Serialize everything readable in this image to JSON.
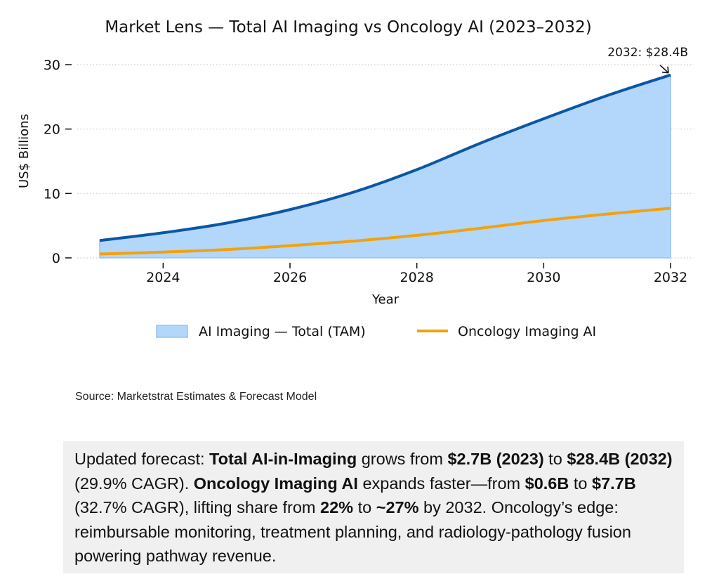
{
  "chart_data": {
    "type": "area",
    "title": "Market Lens — Total AI Imaging vs Oncology AI (2023–2032)",
    "xlabel": "Year",
    "ylabel": "US$ Billions",
    "x": [
      2023,
      2024,
      2025,
      2026,
      2027,
      2028,
      2029,
      2030,
      2031,
      2032
    ],
    "xlim": [
      2022.65,
      2032.35
    ],
    "ylim": [
      0,
      31
    ],
    "xticks": [
      2024,
      2026,
      2028,
      2030,
      2032
    ],
    "yticks": [
      0,
      10,
      20,
      30
    ],
    "grid": "horizontal-dotted",
    "legend_position": "bottom-center",
    "series": [
      {
        "name": "AI Imaging — Total (TAM)",
        "kind": "area-with-line",
        "color": "#0b57a4",
        "fill": "#b3d6fb",
        "values": [
          2.7,
          3.9,
          5.4,
          7.5,
          10.2,
          13.7,
          17.8,
          21.6,
          25.2,
          28.4
        ]
      },
      {
        "name": "Oncology Imaging AI",
        "kind": "line",
        "color": "#f2a20c",
        "values": [
          0.6,
          0.9,
          1.3,
          1.9,
          2.6,
          3.5,
          4.6,
          5.8,
          6.8,
          7.7
        ]
      }
    ],
    "annotations": [
      {
        "text": "2032: $28.4B",
        "x": 2032,
        "y": 28.4
      }
    ]
  },
  "source": "Source: Marketstrat Estimates & Forecast Model",
  "summary": {
    "parts": [
      {
        "t": "Updated forecast: ",
        "b": false
      },
      {
        "t": "Total AI-in-Imaging",
        "b": true
      },
      {
        "t": " grows from ",
        "b": false
      },
      {
        "t": "$2.7B (2023)",
        "b": true
      },
      {
        "t": " to ",
        "b": false
      },
      {
        "t": "$28.4B (2032)",
        "b": true
      },
      {
        "t": " (29.9% CAGR). ",
        "b": false
      },
      {
        "t": "Oncology Imaging AI",
        "b": true
      },
      {
        "t": " expands faster—from ",
        "b": false
      },
      {
        "t": "$0.6B",
        "b": true
      },
      {
        "t": " to ",
        "b": false
      },
      {
        "t": "$7.7B",
        "b": true
      },
      {
        "t": " (32.7% CAGR), lifting share from ",
        "b": false
      },
      {
        "t": "22%",
        "b": true
      },
      {
        "t": " to ",
        "b": false
      },
      {
        "t": "~27%",
        "b": true
      },
      {
        "t": " by 2032. Oncology’s edge: reimbursable monitoring, treatment planning, and radiology-pathology fusion powering pathway revenue.",
        "b": false
      }
    ]
  }
}
